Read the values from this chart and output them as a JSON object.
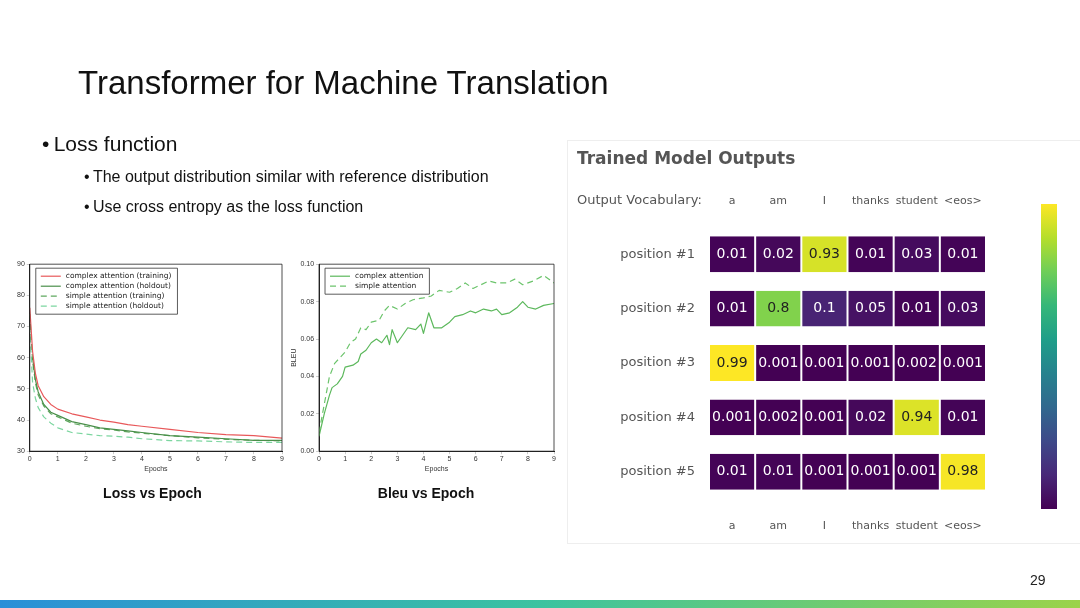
{
  "chart_data": [
    {
      "type": "other",
      "title": "Transformer for Machine Translation",
      "annotations": [
        "•\tLoss function",
        "•\tThe output distribution similar with reference distribution",
        "•\tUse cross entropy as the loss function",
        "29"
      ]
    },
    {
      "type": "line",
      "title": "Loss vs Epoch",
      "xlabel": "Epochs",
      "xlim": [
        0,
        9
      ],
      "xticks": [
        0,
        1,
        2,
        3,
        4,
        5,
        6,
        7,
        8,
        9
      ],
      "ylim": [
        30,
        90
      ],
      "yticks": [
        30,
        40,
        50,
        60,
        70,
        80,
        90
      ],
      "legend": "top left",
      "marker": "none",
      "grid": false,
      "x": [
        0,
        0.1,
        0.2,
        0.3,
        0.5,
        0.75,
        1,
        1.5,
        2,
        2.5,
        3,
        3.5,
        4,
        5,
        6,
        7,
        8,
        9
      ],
      "series": [
        {
          "name": "complex attention (training)",
          "color": "#e8585a",
          "line_style": "solid",
          "values": [
            76,
            62,
            55,
            51,
            47.5,
            45,
            43.5,
            42,
            41,
            40,
            39.3,
            38.5,
            38,
            37,
            36,
            35.3,
            35,
            34.2
          ]
        },
        {
          "name": "complex attention (holdout)",
          "color": "#4a8f4a",
          "line_style": "solid",
          "values": [
            null,
            60,
            53,
            49,
            45,
            42.5,
            41.5,
            39.5,
            38.5,
            37.5,
            37,
            36.5,
            36,
            35,
            34.5,
            34,
            33.5,
            33.5
          ]
        },
        {
          "name": "simple attention (training)",
          "color": "#5fa85f",
          "line_style": "dashed",
          "values": [
            74,
            59,
            52,
            48,
            44.5,
            42,
            41,
            39,
            38,
            37.2,
            36.8,
            36.2,
            35.8,
            35,
            34.3,
            33.8,
            33.5,
            33.3
          ]
        },
        {
          "name": "simple attention (holdout)",
          "color": "#7cd6a0",
          "line_style": "dashed",
          "values": [
            70,
            52,
            47,
            44,
            41,
            39,
            37.5,
            36,
            35.5,
            35,
            34.8,
            34.5,
            34,
            33.4,
            33.3,
            33,
            32.8,
            32.8
          ]
        }
      ]
    },
    {
      "type": "line",
      "title": "Bleu vs Epoch",
      "xlabel": "Epochs",
      "ylabel": "BLEU",
      "xlim": [
        0,
        9
      ],
      "xticks": [
        0,
        1,
        2,
        3,
        4,
        5,
        6,
        7,
        8,
        9
      ],
      "ylim": [
        0,
        0.1
      ],
      "yticks": [
        {
          "value": 0,
          "label": "0.00"
        },
        {
          "value": 0.02,
          "label": "0.02"
        },
        {
          "value": 0.04,
          "label": "0.04"
        },
        {
          "value": 0.06,
          "label": "0.06"
        },
        {
          "value": 0.08,
          "label": "0.08"
        },
        {
          "value": 0.1,
          "label": "0.10"
        }
      ],
      "legend": "top left",
      "marker": "none",
      "grid": false,
      "series": [
        {
          "name": "complex attention",
          "color": "#5cb85c",
          "line_style": "solid",
          "x": [
            0,
            0.2,
            0.4,
            0.5,
            0.7,
            0.9,
            1.0,
            1.3,
            1.5,
            1.6,
            1.8,
            2.0,
            2.2,
            2.4,
            2.6,
            2.7,
            2.8,
            3.0,
            3.2,
            3.4,
            3.7,
            3.9,
            4.0,
            4.2,
            4.4,
            4.7,
            5.0,
            5.2,
            5.5,
            5.8,
            6.0,
            6.3,
            6.6,
            6.8,
            7.0,
            7.3,
            7.6,
            7.8,
            8.0,
            8.3,
            8.6,
            9.0
          ],
          "values": [
            0.008,
            0.02,
            0.03,
            0.034,
            0.036,
            0.04,
            0.045,
            0.046,
            0.048,
            0.052,
            0.054,
            0.058,
            0.06,
            0.058,
            0.062,
            0.057,
            0.065,
            0.058,
            0.062,
            0.066,
            0.065,
            0.068,
            0.063,
            0.074,
            0.066,
            0.066,
            0.069,
            0.072,
            0.073,
            0.075,
            0.074,
            0.076,
            0.075,
            0.076,
            0.073,
            0.074,
            0.077,
            0.08,
            0.077,
            0.076,
            0.078,
            0.079
          ]
        },
        {
          "name": "simple attention",
          "color": "#6cc46c",
          "line_style": "dashed",
          "x": [
            0,
            0.2,
            0.4,
            0.6,
            0.8,
            1.0,
            1.2,
            1.4,
            1.6,
            1.8,
            2.0,
            2.3,
            2.5,
            2.7,
            3.0,
            3.3,
            3.6,
            4.0,
            4.3,
            4.6,
            5.0,
            5.3,
            5.6,
            5.9,
            6.2,
            6.5,
            6.8,
            7.2,
            7.5,
            7.8,
            8.2,
            8.6,
            9.0
          ],
          "values": [
            0.01,
            0.025,
            0.04,
            0.047,
            0.05,
            0.053,
            0.058,
            0.06,
            0.066,
            0.065,
            0.069,
            0.07,
            0.075,
            0.078,
            0.076,
            0.079,
            0.081,
            0.082,
            0.083,
            0.086,
            0.085,
            0.087,
            0.09,
            0.087,
            0.089,
            0.091,
            0.09,
            0.09,
            0.092,
            0.089,
            0.091,
            0.094,
            0.09
          ]
        }
      ]
    },
    {
      "type": "heatmap",
      "title": "Trained Model Outputs",
      "data_labels": true,
      "xlabel": "Output Vocabulary:",
      "categories": [
        "a",
        "am",
        "I",
        "thanks",
        "student",
        "<eos>"
      ],
      "y_categories": [
        "position #1",
        "position #2",
        "position #3",
        "position #4",
        "position #5"
      ],
      "cells": [
        [
          0.01,
          0.02,
          0.93,
          0.01,
          0.03,
          0.01
        ],
        [
          0.01,
          0.8,
          0.1,
          0.05,
          0.01,
          0.03
        ],
        [
          0.99,
          0.001,
          0.001,
          0.001,
          0.002,
          0.001
        ],
        [
          0.001,
          0.002,
          0.001,
          0.02,
          0.94,
          0.01
        ],
        [
          0.01,
          0.01,
          0.001,
          0.001,
          0.001,
          0.98
        ]
      ]
    }
  ]
}
